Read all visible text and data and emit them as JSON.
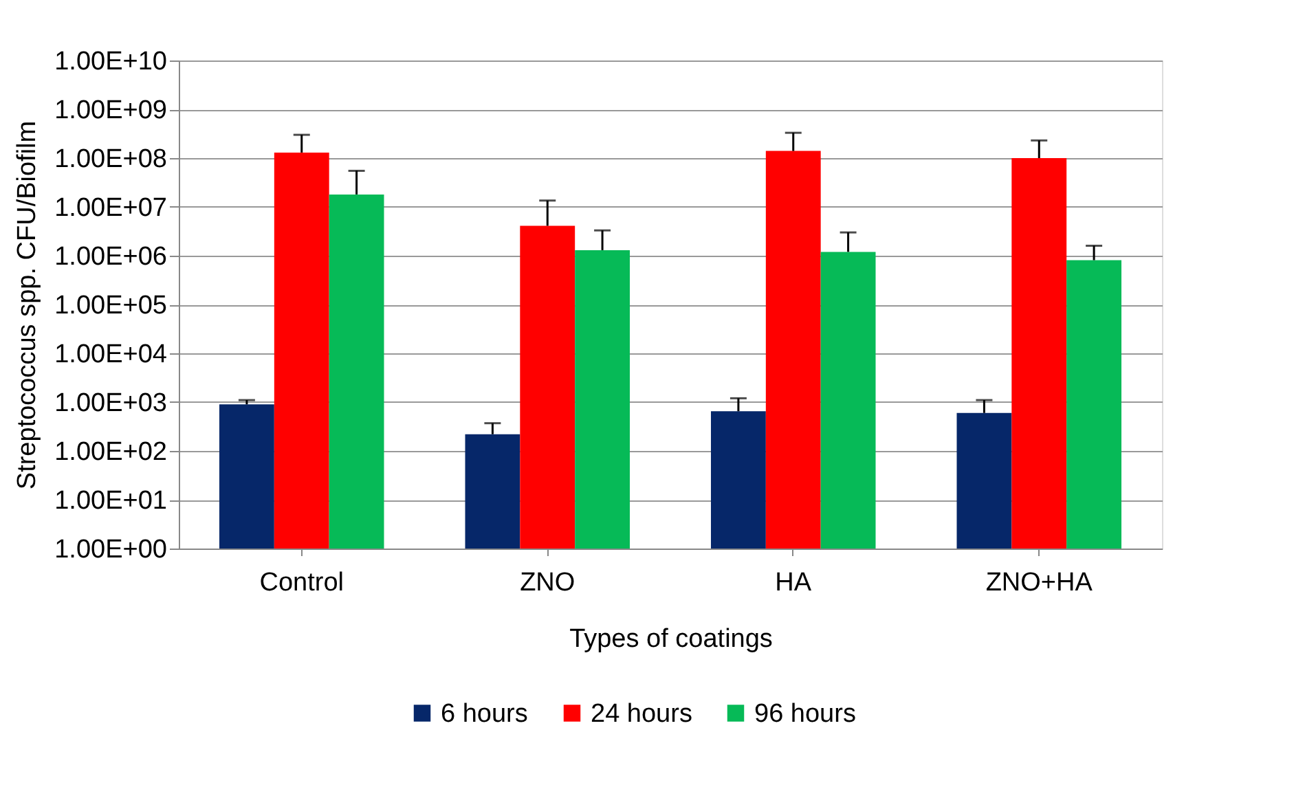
{
  "chart_data": {
    "type": "bar",
    "xlabel": "Types of coatings",
    "ylabel": "Streptococcus spp. CFU/Biofilm",
    "categories": [
      "Control",
      "ZNO",
      "HA",
      "ZNO+HA"
    ],
    "series": [
      {
        "name": "6 hours",
        "color": "#062769",
        "values": [
          900,
          220,
          650,
          600
        ],
        "errors": [
          [
            900,
            1100
          ],
          [
            220,
            370
          ],
          [
            650,
            1200
          ],
          [
            600,
            1100
          ]
        ]
      },
      {
        "name": "24 hours",
        "color": "#ff0000",
        "values": [
          130000000,
          4100000,
          140000000,
          100000000
        ],
        "errors": [
          [
            130000000,
            300000000
          ],
          [
            4100000,
            13500000
          ],
          [
            140000000,
            330000000
          ],
          [
            100000000,
            230000000
          ]
        ]
      },
      {
        "name": "96 hours",
        "color": "#06ba57",
        "values": [
          18000000,
          1300000,
          1200000,
          810000
        ],
        "errors": [
          [
            18000000,
            55000000
          ],
          [
            1300000,
            3300000
          ],
          [
            1200000,
            3000000
          ],
          [
            810000,
            1600000
          ]
        ]
      }
    ],
    "log": true,
    "ylim": [
      1,
      10000000000
    ],
    "yticks": [
      {
        "value": 1,
        "label": "1.00E+00"
      },
      {
        "value": 10,
        "label": "1.00E+01"
      },
      {
        "value": 100,
        "label": "1.00E+02"
      },
      {
        "value": 1000,
        "label": "1.00E+03"
      },
      {
        "value": 10000,
        "label": "1.00E+04"
      },
      {
        "value": 100000,
        "label": "1.00E+05"
      },
      {
        "value": 1000000,
        "label": "1.00E+06"
      },
      {
        "value": 10000000,
        "label": "1.00E+07"
      },
      {
        "value": 100000000,
        "label": "1.00E+08"
      },
      {
        "value": 1000000000,
        "label": "1.00E+09"
      },
      {
        "value": 10000000000,
        "label": "1.00E+10"
      }
    ],
    "grid": "y",
    "legend": "bottom"
  }
}
